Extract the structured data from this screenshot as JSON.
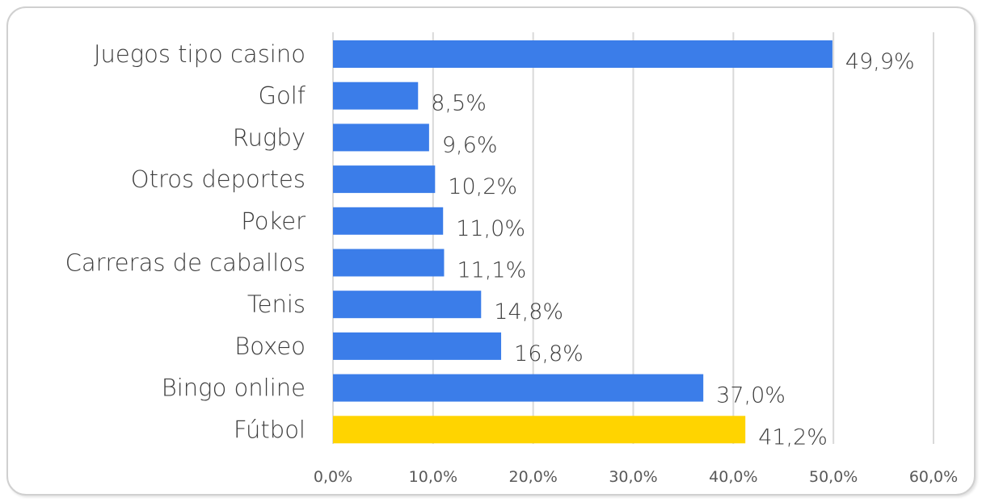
{
  "chart_data": {
    "type": "bar",
    "orientation": "horizontal",
    "title": "",
    "xlabel": "",
    "ylabel": "",
    "categories": [
      "Juegos tipo casino",
      "Golf",
      "Rugby",
      "Otros deportes",
      "Poker",
      "Carreras de caballos",
      "Tenis",
      "Boxeo",
      "Bingo online",
      "Fútbol"
    ],
    "values": [
      49.9,
      8.5,
      9.6,
      10.2,
      11.0,
      11.1,
      14.8,
      16.8,
      37.0,
      41.2
    ],
    "value_labels": [
      "49,9%",
      "8,5%",
      "9,6%",
      "10,2%",
      "11,0%",
      "11,1%",
      "14,8%",
      "16,8%",
      "37,0%",
      "41,2%"
    ],
    "xlim": [
      0,
      60
    ],
    "ticks": [
      0,
      10,
      20,
      30,
      40,
      50,
      60
    ],
    "tick_labels": [
      "0,0%",
      "10,0%",
      "20,0%",
      "30,0%",
      "40,0%",
      "50,0%",
      "60,0%"
    ],
    "grid": true,
    "legend": "none",
    "colors": {
      "default_bar": "#3b7de9",
      "highlight_bar": "#ffd400",
      "highlight_category": "Fútbol"
    }
  }
}
